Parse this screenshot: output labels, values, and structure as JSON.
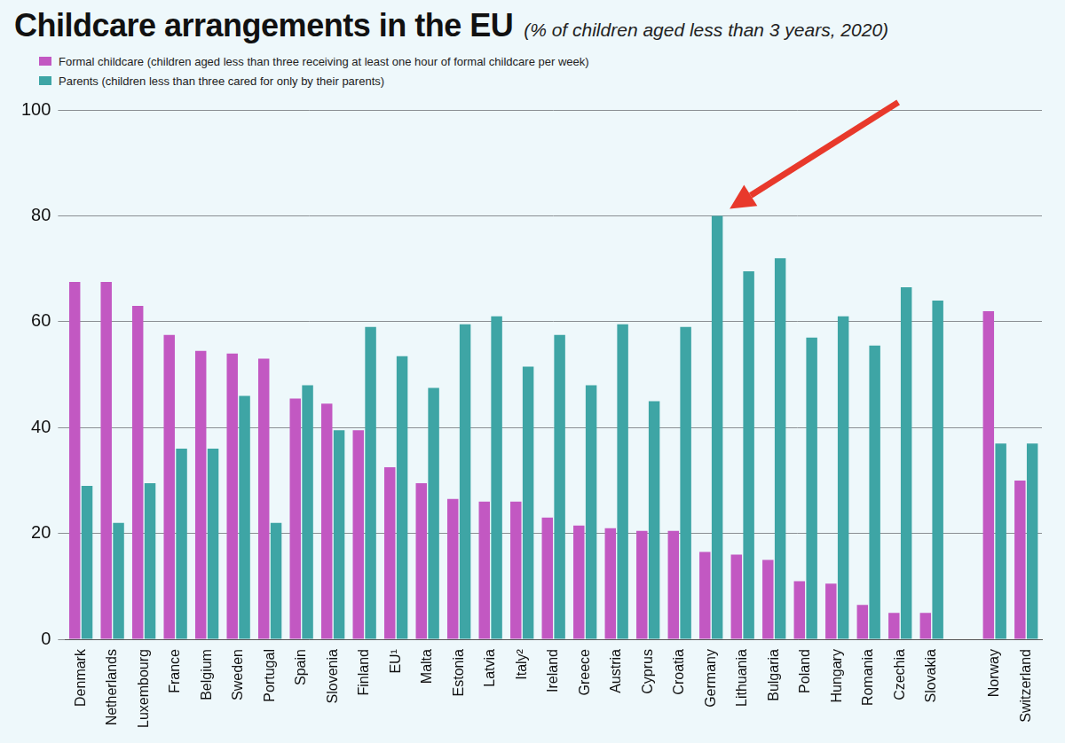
{
  "chart_data": {
    "type": "bar",
    "title": "Childcare arrangements in the EU",
    "subtitle": "(% of children aged less than 3 years, 2020)",
    "categories": [
      "Denmark",
      "Netherlands",
      "Luxembourg",
      "France",
      "Belgium",
      "Sweden",
      "Portugal",
      "Spain",
      "Slovenia",
      "Finland",
      "EU¹",
      "Malta",
      "Estonia",
      "Latvia",
      "Italy²",
      "Ireland",
      "Greece",
      "Austria",
      "Cyprus",
      "Croatia",
      "Germany",
      "Lithuania",
      "Bulgaria",
      "Poland",
      "Hungary",
      "Romania",
      "Czechia",
      "Slovakia",
      null,
      "Norway",
      "Switzerland"
    ],
    "series": [
      {
        "name": "Formal childcare (children aged less than three receiving at least one hour of formal childcare per week)",
        "color": "#c258c2",
        "values": [
          67.5,
          67.5,
          63,
          57.5,
          54.5,
          54,
          53,
          45.5,
          44.5,
          39.5,
          32.5,
          29.5,
          26.5,
          26,
          26,
          23,
          21.5,
          21,
          20.5,
          20.5,
          16.5,
          16,
          15,
          11,
          10.5,
          6.5,
          5,
          5,
          null,
          62,
          30
        ]
      },
      {
        "name": "Parents (children less than three cared for only by their parents)",
        "color": "#3ea5a5",
        "values": [
          29,
          22,
          29.5,
          36,
          36,
          46,
          22,
          48,
          39.5,
          59,
          53.5,
          47.5,
          59.5,
          61,
          51.5,
          57.5,
          48,
          59.5,
          45,
          59,
          80,
          69.5,
          72,
          57,
          61,
          55.5,
          66.5,
          64,
          null,
          37,
          37
        ]
      }
    ],
    "ylim": [
      0,
      100
    ],
    "yticks": [
      0,
      20,
      40,
      60,
      80,
      100
    ],
    "grid": true,
    "legend": "top-left"
  }
}
